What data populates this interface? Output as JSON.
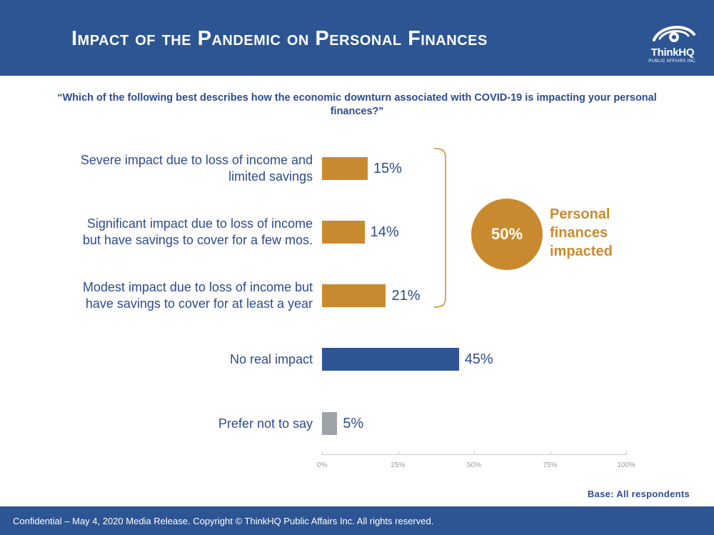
{
  "header": {
    "title": "Impact of the Pandemic on Personal Finances",
    "logo_name": "ThinkHQ",
    "logo_sub": "PUBLIC AFFAIRS INC."
  },
  "question": "“Which of the following best describes how the economic downturn associated with COVID-19 is impacting your personal finances?\"",
  "chart_data": {
    "type": "bar",
    "orientation": "horizontal",
    "categories": [
      [
        "Severe impact due to loss of income and",
        "limited savings"
      ],
      [
        "Significant impact due to loss of income",
        "but have savings to cover for a few mos."
      ],
      [
        "Modest impact due to loss of income but",
        "have savings to cover for at least a year"
      ],
      [
        "No real impact"
      ],
      [
        "Prefer not to say"
      ]
    ],
    "values": [
      15,
      14,
      21,
      45,
      5
    ],
    "value_labels": [
      "15%",
      "14%",
      "21%",
      "45%",
      "5%"
    ],
    "colors": [
      "#c98a2f",
      "#c98a2f",
      "#c98a2f",
      "#2d5593",
      "#9ea3a8"
    ],
    "xlim": [
      0,
      100
    ],
    "ticks": [
      0,
      25,
      50,
      75,
      100
    ],
    "tick_labels": [
      "0%",
      "25%",
      "50%",
      "75%",
      "100%"
    ],
    "grid": false,
    "annotation": {
      "value": "50%",
      "lines": [
        "Personal",
        "finances",
        "impacted"
      ],
      "color": "#c98a2f",
      "brackets_categories": [
        0,
        1,
        2
      ]
    }
  },
  "base_note": "Base: All respondents",
  "footer": {
    "text": "Confidential – May 4, 2020 Media Release. Copyright © ThinkHQ Public Affairs Inc. All rights reserved."
  },
  "colors": {
    "brand_blue": "#2d5593",
    "text_blue": "#2d4b8e",
    "accent_orange": "#c98a2f",
    "neutral_gray": "#9ea3a8"
  }
}
